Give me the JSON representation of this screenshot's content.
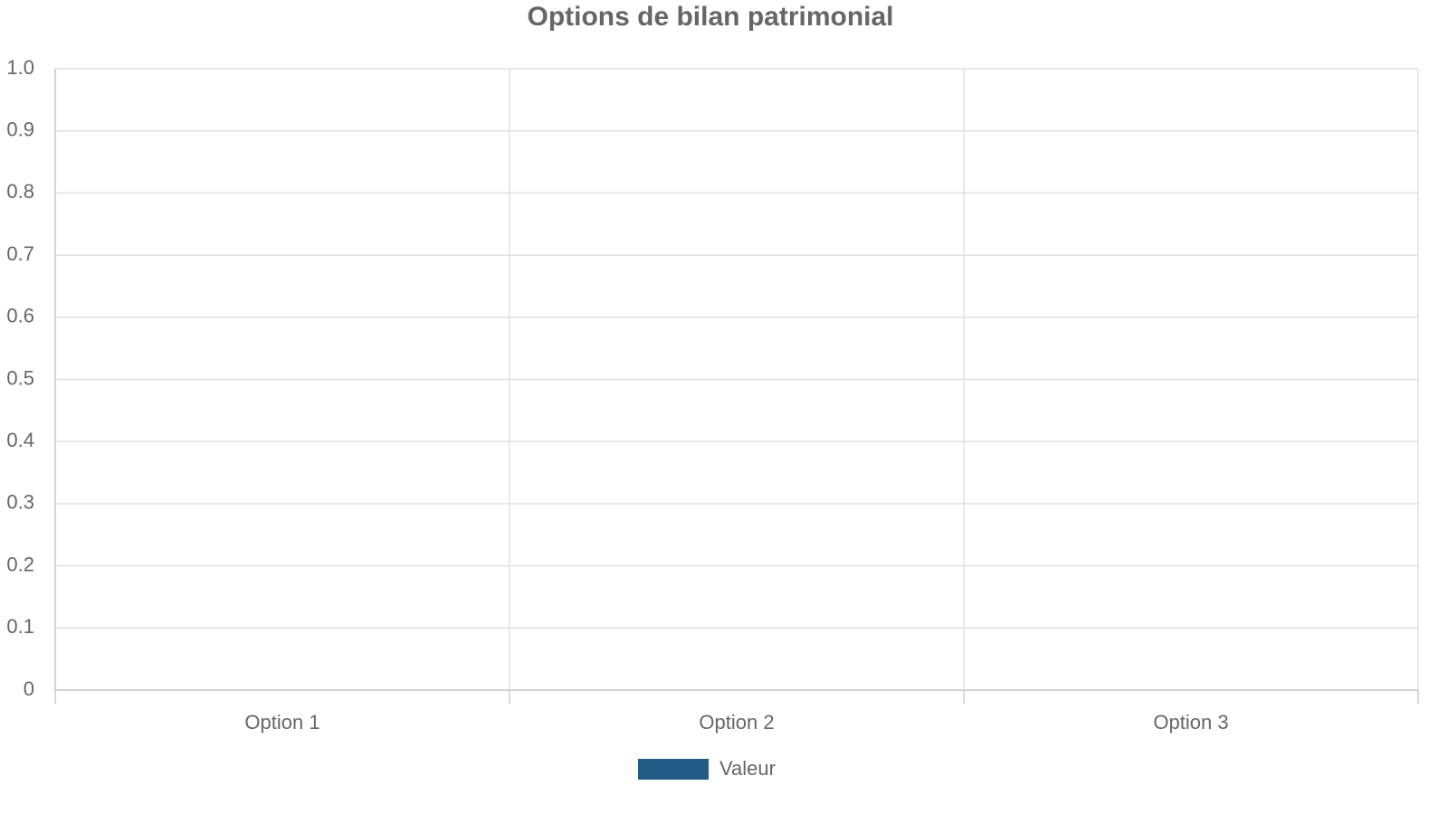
{
  "chart_data": {
    "type": "bar",
    "title": "Options de bilan patrimonial",
    "categories": [
      "Option 1",
      "Option 2",
      "Option 3"
    ],
    "series": [
      {
        "name": "Valeur",
        "color": "#215b86",
        "values": [
          0,
          0,
          0
        ]
      }
    ],
    "ylim": [
      0,
      1
    ],
    "yticks": [
      0,
      0.1,
      0.2,
      0.3,
      0.4,
      0.5,
      0.6,
      0.7,
      0.8,
      0.9,
      {
        "value": 1,
        "label": "1.0"
      }
    ],
    "grid": true,
    "legend": "bottom"
  }
}
